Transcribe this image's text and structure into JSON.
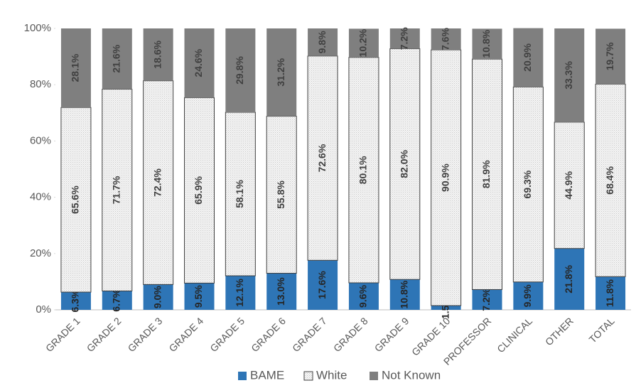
{
  "chart_data": {
    "type": "stacked_bar_100",
    "categories": [
      "GRADE 1",
      "GRADE 2",
      "GRADE 3",
      "GRADE 4",
      "GRADE 5",
      "GRADE 6",
      "GRADE 7",
      "GRADE 8",
      "GRADE 9",
      "GRADE 10",
      "PROFESSOR",
      "CLINICAL",
      "OTHER",
      "TOTAL"
    ],
    "series": [
      {
        "name": "BAME",
        "color": "#2e75b6",
        "values": [
          6.3,
          6.7,
          9.0,
          9.5,
          12.1,
          13.0,
          17.6,
          9.6,
          10.8,
          1.5,
          7.2,
          9.9,
          21.8,
          11.8
        ],
        "value_labels": [
          "6.3%",
          "6.7%",
          "9.0%",
          "9.5%",
          "12.1%",
          "13.0%",
          "17.6%",
          "9.6%",
          "10.8%",
          "1.5%",
          "7.2%",
          "9.9%",
          "21.8%",
          "11.8%"
        ]
      },
      {
        "name": "White",
        "color": "#f4f4f4",
        "values": [
          65.6,
          71.7,
          72.4,
          65.9,
          58.1,
          55.8,
          72.6,
          80.1,
          82.0,
          90.9,
          81.9,
          69.3,
          44.9,
          68.4
        ],
        "value_labels": [
          "65.6%",
          "71.7%",
          "72.4%",
          "65.9%",
          "58.1%",
          "55.8%",
          "72.6%",
          "80.1%",
          "82.0%",
          "90.9%",
          "81.9%",
          "69.3%",
          "44.9%",
          "68.4%"
        ]
      },
      {
        "name": "Not Known",
        "color": "#7f7f7f",
        "values": [
          28.1,
          21.6,
          18.6,
          24.6,
          29.8,
          31.2,
          9.8,
          10.2,
          7.2,
          7.6,
          10.8,
          20.9,
          33.3,
          19.7
        ],
        "value_labels": [
          "28.1%",
          "21.6%",
          "18.6%",
          "24.6%",
          "29.8%",
          "31.2%",
          "9.8%",
          "10.2%",
          "7.2%",
          "7.6%",
          "10.8%",
          "20.9%",
          "33.3%",
          "19.7%"
        ]
      }
    ],
    "ylim": [
      0,
      100
    ],
    "yticks": [
      {
        "value": 0,
        "label": "0%"
      },
      {
        "value": 20,
        "label": "20%"
      },
      {
        "value": 40,
        "label": "40%"
      },
      {
        "value": 60,
        "label": "60%"
      },
      {
        "value": 80,
        "label": "80%"
      },
      {
        "value": 100,
        "label": "100%"
      }
    ],
    "legend": "bottom"
  }
}
